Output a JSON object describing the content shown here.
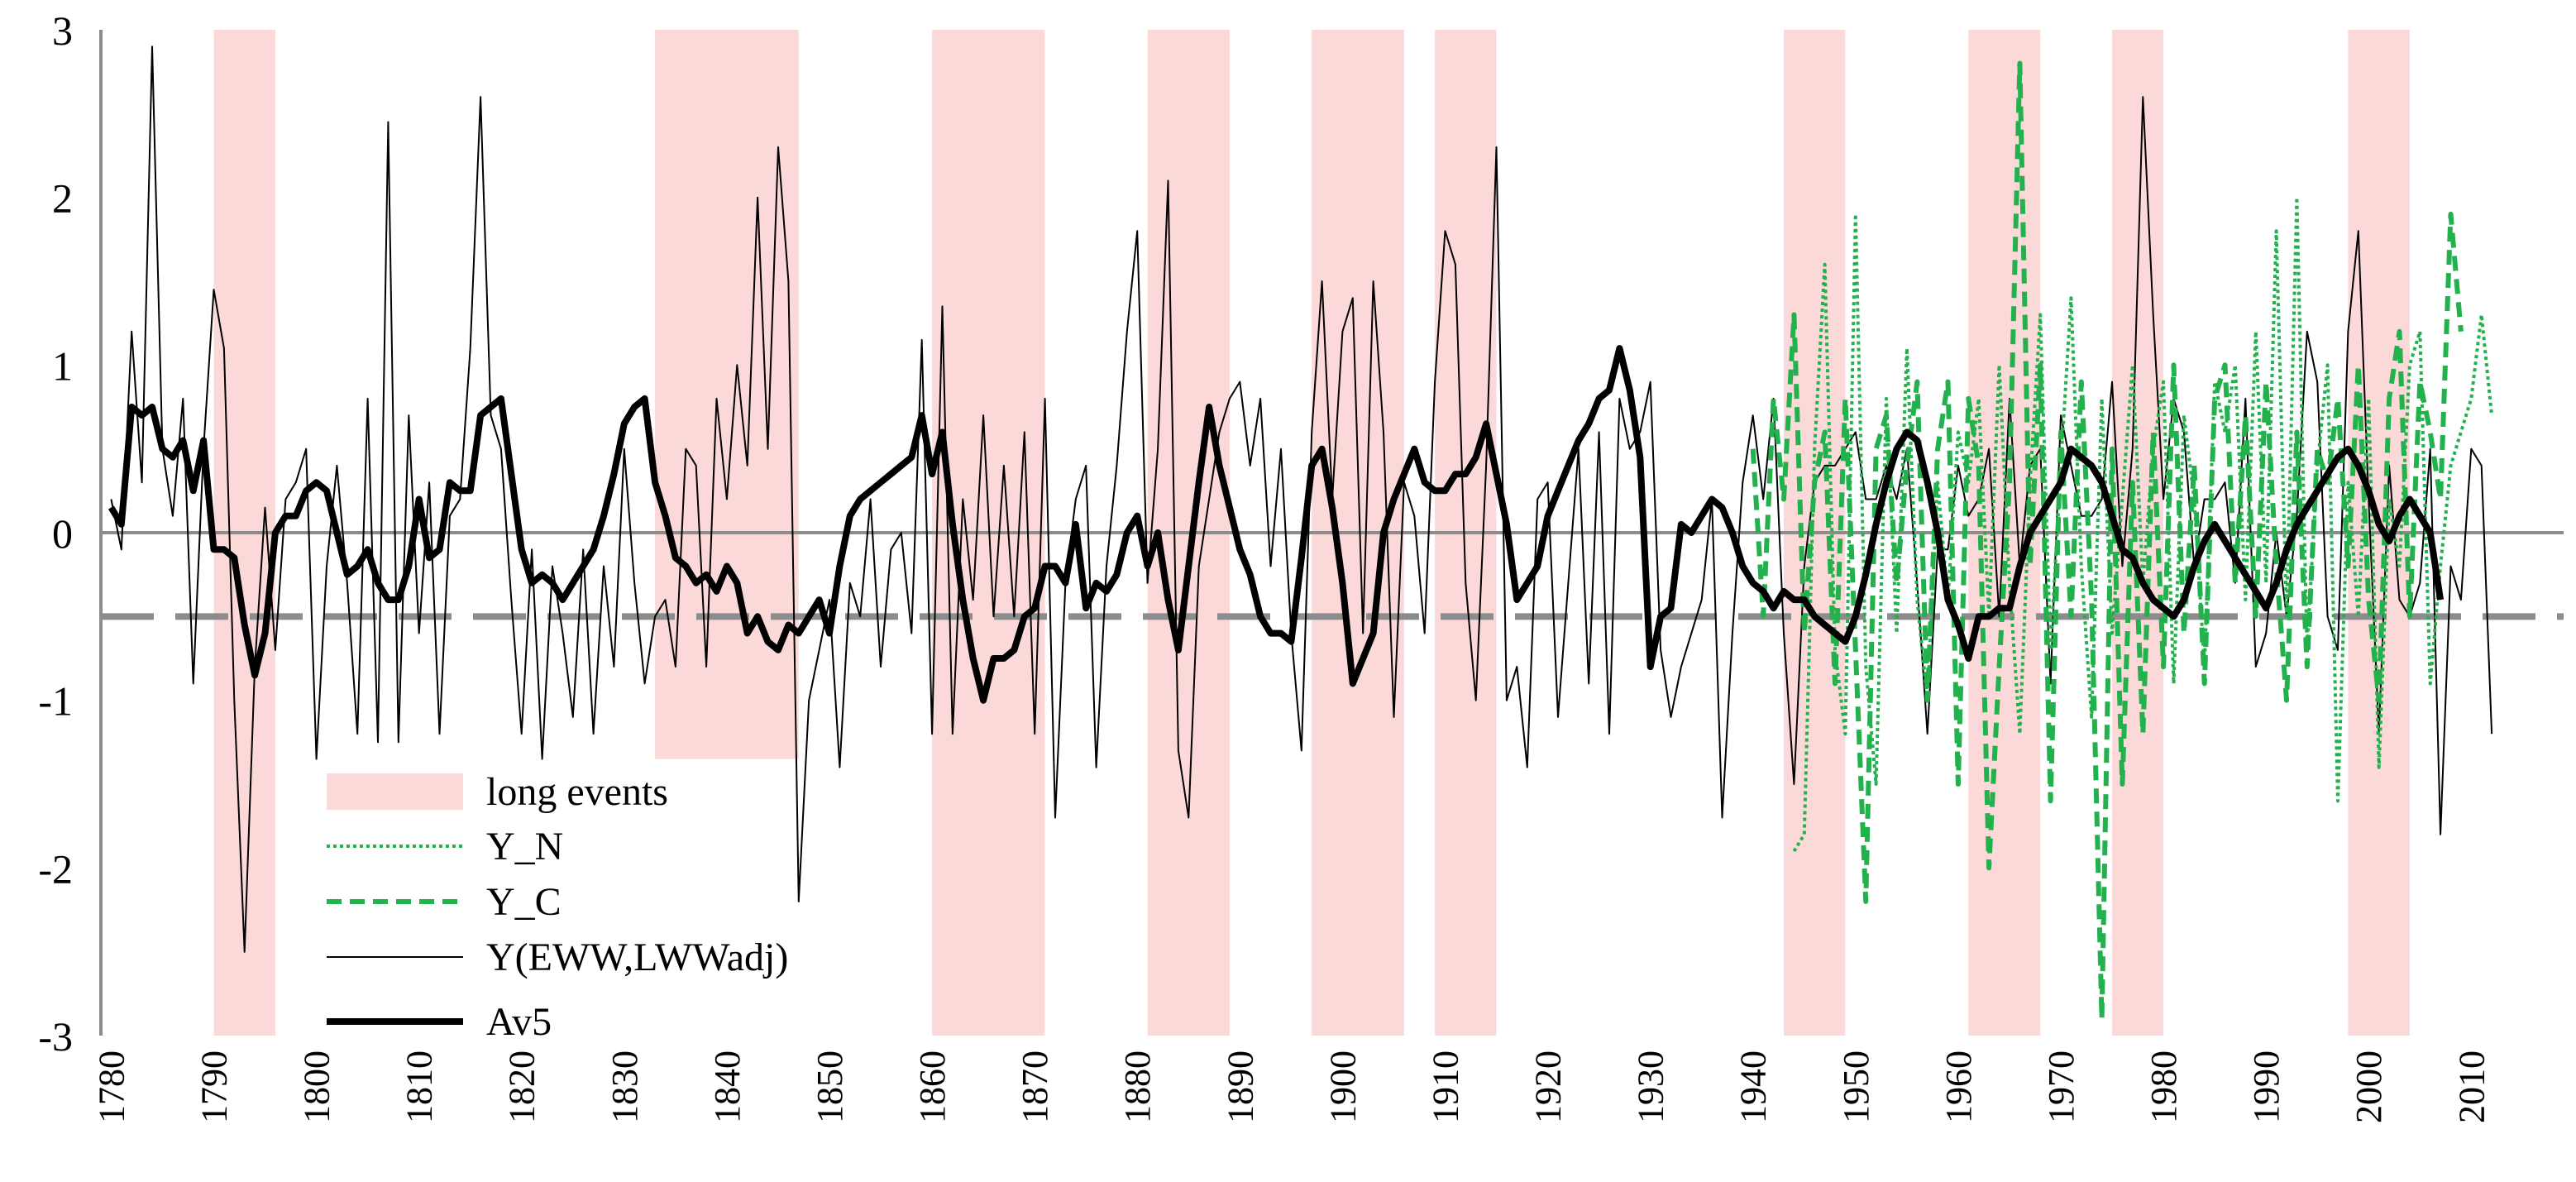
{
  "chart_data": {
    "type": "line",
    "title": "",
    "xlabel": "",
    "ylabel": "",
    "xlim": [
      1779,
      2019
    ],
    "ylim": [
      -3,
      3
    ],
    "yticks": [
      3,
      2,
      1,
      0,
      -1,
      -2,
      -3
    ],
    "xticks": [
      1780,
      1790,
      1800,
      1810,
      1820,
      1830,
      1840,
      1850,
      1860,
      1870,
      1880,
      1890,
      1900,
      1910,
      1920,
      1930,
      1940,
      1950,
      1960,
      1970,
      1980,
      1990,
      2000,
      2010
    ],
    "threshold": -0.5,
    "long_events": [
      {
        "start": 1790,
        "end": 1796,
        "top": -3
      },
      {
        "start": 1833,
        "end": 1847,
        "top": -1.35
      },
      {
        "start": 1860,
        "end": 1871,
        "top": -3
      },
      {
        "start": 1881,
        "end": 1889,
        "top": -3
      },
      {
        "start": 1897,
        "end": 1906,
        "top": -3
      },
      {
        "start": 1909,
        "end": 1915,
        "top": -3
      },
      {
        "start": 1943,
        "end": 1949,
        "top": -3
      },
      {
        "start": 1961,
        "end": 1968,
        "top": -3
      },
      {
        "start": 1975,
        "end": 1980,
        "top": -3
      },
      {
        "start": 1998,
        "end": 2004,
        "top": -3
      }
    ],
    "legend": [
      {
        "key": "long_events",
        "label": "long events"
      },
      {
        "key": "y_n",
        "label": "Y_N"
      },
      {
        "key": "y_c",
        "label": "Y_C"
      },
      {
        "key": "y",
        "label": "Y(EWW,LWWadj)"
      },
      {
        "key": "av5",
        "label": "Av5"
      }
    ],
    "series": [
      {
        "key": "y",
        "name": "Y(EWW,LWWadj)",
        "color": "#000000",
        "x_start": 1780,
        "values": [
          0.2,
          -0.1,
          1.2,
          0.3,
          2.9,
          0.5,
          0.1,
          0.8,
          -0.9,
          0.5,
          1.45,
          1.1,
          -1.0,
          -2.5,
          -0.8,
          0.15,
          -0.7,
          0.2,
          0.3,
          0.5,
          -1.35,
          -0.2,
          0.4,
          -0.3,
          -1.2,
          0.8,
          -1.25,
          2.45,
          -1.25,
          0.7,
          -0.6,
          0.3,
          -1.2,
          0.1,
          0.2,
          1.1,
          2.6,
          0.7,
          0.5,
          -0.4,
          -1.2,
          -0.1,
          -1.35,
          -0.2,
          -0.6,
          -1.1,
          -0.1,
          -1.2,
          -0.2,
          -0.8,
          0.5,
          -0.3,
          -0.9,
          -0.5,
          -0.4,
          -0.8,
          0.5,
          0.4,
          -0.8,
          0.8,
          0.2,
          1.0,
          0.4,
          2.0,
          0.5,
          2.3,
          1.5,
          -2.2,
          -1.0,
          -0.7,
          -0.4,
          -1.4,
          -0.3,
          -0.5,
          0.2,
          -0.8,
          -0.1,
          0.0,
          -0.6,
          1.15,
          -1.2,
          1.35,
          -1.2,
          0.2,
          -0.4,
          0.7,
          -0.5,
          0.4,
          -0.5,
          0.6,
          -1.2,
          0.8,
          -1.7,
          -0.3,
          0.2,
          0.4,
          -1.4,
          -0.2,
          0.4,
          1.2,
          1.8,
          -0.3,
          0.5,
          2.1,
          -1.3,
          -1.7,
          -0.2,
          0.2,
          0.6,
          0.8,
          0.9,
          0.4,
          0.8,
          -0.2,
          0.5,
          -0.6,
          -1.3,
          0.6,
          1.5,
          0.2,
          1.2,
          1.4,
          -0.6,
          1.5,
          0.6,
          -1.1,
          0.3,
          0.1,
          -0.6,
          0.9,
          1.8,
          1.6,
          -0.3,
          -1.0,
          0.4,
          2.3,
          -1.0,
          -0.8,
          -1.4,
          0.2,
          0.3,
          -1.1,
          -0.3,
          0.5,
          -0.9,
          0.6,
          -1.2,
          0.8,
          0.5,
          0.6,
          0.9,
          -0.7,
          -1.1,
          -0.8,
          -0.6,
          -0.4,
          0.2,
          -1.7,
          -0.6,
          0.3,
          0.7,
          0.2,
          0.8,
          -0.6,
          -1.5,
          -0.2,
          0.3,
          0.4,
          0.4,
          0.5,
          0.6,
          0.2,
          0.2,
          0.4,
          0.2,
          0.5,
          -0.3,
          -1.2,
          -0.1,
          -0.1,
          0.4,
          0.1,
          0.2,
          0.5,
          -0.5,
          0.8,
          -0.2,
          0.4,
          0.5,
          -0.9,
          0.7,
          0.4,
          0.1,
          0.1,
          0.2,
          0.9,
          -0.2,
          0.5,
          2.6,
          1.3,
          0.2,
          0.8,
          0.6,
          -0.2,
          0.2,
          0.2,
          0.3,
          -0.3,
          0.8,
          -0.8,
          -0.6,
          0.0,
          -0.5,
          0.1,
          1.2,
          0.9,
          -0.5,
          -0.7,
          1.2,
          1.8,
          0.2,
          -1.2,
          0.4,
          -0.4,
          -0.5,
          -0.3,
          0.5,
          -1.8,
          -0.2,
          -0.4,
          0.5,
          0.4,
          -1.2
        ]
      },
      {
        "key": "av5",
        "name": "Av5",
        "color": "#000000",
        "x_start": 1780,
        "values": [
          0.15,
          0.05,
          0.75,
          0.7,
          0.75,
          0.5,
          0.45,
          0.55,
          0.25,
          0.55,
          -0.1,
          -0.1,
          -0.15,
          -0.55,
          -0.85,
          -0.6,
          0.0,
          0.1,
          0.1,
          0.25,
          0.3,
          0.25,
          0.0,
          -0.25,
          -0.2,
          -0.1,
          -0.3,
          -0.4,
          -0.4,
          -0.2,
          0.2,
          -0.15,
          -0.1,
          0.3,
          0.25,
          0.25,
          0.7,
          0.75,
          0.8,
          0.35,
          -0.1,
          -0.3,
          -0.25,
          -0.3,
          -0.4,
          -0.3,
          -0.2,
          -0.1,
          0.1,
          0.35,
          0.65,
          0.75,
          0.8,
          0.3,
          0.1,
          -0.15,
          -0.2,
          -0.3,
          -0.25,
          -0.35,
          -0.2,
          -0.3,
          -0.6,
          -0.5,
          -0.65,
          -0.7,
          -0.55,
          -0.6,
          -0.5,
          -0.4,
          -0.6,
          -0.2,
          0.1,
          0.2,
          0.25,
          0.3,
          0.35,
          0.4,
          0.45,
          0.7,
          0.35,
          0.6,
          0.05,
          -0.4,
          -0.75,
          -1.0,
          -0.75,
          -0.75,
          -0.7,
          -0.5,
          -0.45,
          -0.2,
          -0.2,
          -0.3,
          0.05,
          -0.45,
          -0.3,
          -0.35,
          -0.25,
          0.0,
          0.1,
          -0.2,
          0.0,
          -0.4,
          -0.7,
          -0.2,
          0.3,
          0.75,
          0.4,
          0.15,
          -0.1,
          -0.25,
          -0.5,
          -0.6,
          -0.6,
          -0.65,
          -0.15,
          0.4,
          0.5,
          0.15,
          -0.3,
          -0.9,
          -0.75,
          -0.6,
          0.0,
          0.2,
          0.35,
          0.5,
          0.3,
          0.25,
          0.25,
          0.35,
          0.35,
          0.45,
          0.65,
          0.35,
          0.05,
          -0.4,
          -0.3,
          -0.2,
          0.1,
          0.25,
          0.4,
          0.55,
          0.65,
          0.8,
          0.85,
          1.1,
          0.85,
          0.45,
          -0.8,
          -0.5,
          -0.45,
          0.05,
          0.0,
          0.1,
          0.2,
          0.15,
          0.0,
          -0.2,
          -0.3,
          -0.35,
          -0.45,
          -0.35,
          -0.4,
          -0.4,
          -0.5,
          -0.55,
          -0.6,
          -0.65,
          -0.5,
          -0.25,
          0.05,
          0.3,
          0.5,
          0.6,
          0.55,
          0.3,
          0.0,
          -0.4,
          -0.55,
          -0.75,
          -0.5,
          -0.5,
          -0.45,
          -0.45,
          -0.2,
          0.0,
          0.1,
          0.2,
          0.3,
          0.5,
          0.45,
          0.4,
          0.3,
          0.1,
          -0.1,
          -0.15,
          -0.3,
          -0.4,
          -0.45,
          -0.5,
          -0.4,
          -0.2,
          -0.05,
          0.05,
          -0.05,
          -0.15,
          -0.25,
          -0.35,
          -0.45,
          -0.3,
          -0.1,
          0.05,
          0.15,
          0.25,
          0.35,
          0.45,
          0.5,
          0.4,
          0.25,
          0.05,
          -0.05,
          0.1,
          0.2,
          0.1,
          0.0,
          -0.4
        ]
      },
      {
        "key": "y_n",
        "name": "Y_N",
        "color": "#22b14c",
        "x_start": 1944,
        "values": [
          -1.9,
          -1.8,
          0.5,
          1.6,
          -0.7,
          -1.2,
          1.9,
          -0.8,
          -1.5,
          0.8,
          -0.6,
          1.1,
          -0.4,
          -1.0,
          0.3,
          -0.4,
          0.6,
          0.3,
          0.8,
          -0.5,
          1.0,
          -0.3,
          -1.2,
          0.3,
          1.3,
          -0.7,
          0.4,
          1.4,
          -0.2,
          -1.1,
          0.8,
          -0.6,
          0.2,
          1.0,
          -0.3,
          0.5,
          0.9,
          -0.9,
          0.7,
          0.2,
          -0.8,
          0.9,
          0.6,
          1.0,
          -0.4,
          1.2,
          -0.3,
          1.8,
          -0.5,
          2.0,
          -0.7,
          0.4,
          1.0,
          -1.6,
          0.3,
          -0.5,
          0.8,
          -1.4,
          0.2,
          -0.2,
          1.0,
          1.2,
          -0.9,
          -0.2,
          0.4,
          0.6,
          0.8,
          1.3,
          0.7
        ]
      },
      {
        "key": "y_c",
        "name": "Y_C",
        "color": "#22b14c",
        "x_start": 1940,
        "values": [
          0.5,
          -0.5,
          0.8,
          0.2,
          1.3,
          -0.6,
          0.3,
          0.6,
          -0.9,
          0.8,
          -0.7,
          -2.2,
          0.5,
          0.7,
          -0.3,
          0.4,
          0.9,
          -1.0,
          0.5,
          0.9,
          -1.5,
          0.8,
          0.4,
          -2.0,
          -0.8,
          0.3,
          2.8,
          -0.2,
          1.0,
          -1.6,
          0.6,
          -0.5,
          0.9,
          -0.4,
          -2.9,
          0.5,
          -1.5,
          0.3,
          -1.2,
          0.6,
          -0.8,
          1.0,
          -0.6,
          0.4,
          -0.9,
          0.8,
          1.0,
          -0.3,
          0.7,
          -0.5,
          0.9,
          -0.2,
          -1.0,
          0.6,
          -0.8,
          0.5,
          0.3,
          0.8,
          -0.2,
          1.0,
          -0.4,
          -1.0,
          0.8,
          1.2,
          -0.5,
          0.9,
          0.6,
          0.2,
          1.9,
          1.2
        ]
      }
    ]
  }
}
